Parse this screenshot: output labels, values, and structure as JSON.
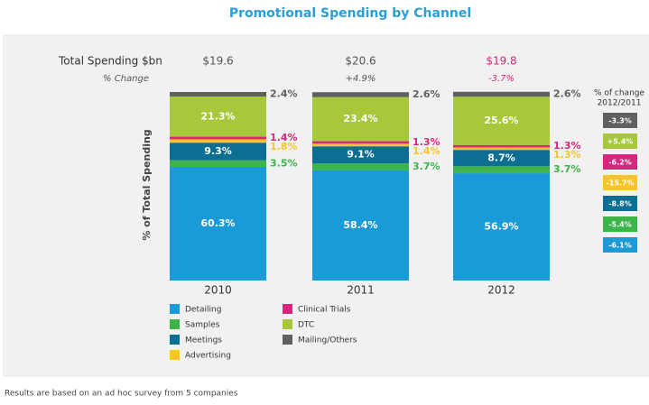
{
  "chart_data": {
    "type": "stacked_bar",
    "title": "Promotional Spending by Channel",
    "y_label": "% of Total Spending",
    "categories": [
      "2010",
      "2011",
      "2012"
    ],
    "ylim": [
      0,
      100
    ],
    "totals": {
      "label": "Total Spending $bn",
      "values": [
        19.6,
        20.6,
        19.8
      ],
      "value_labels": [
        "$19.6",
        "$20.6",
        "$19.8"
      ],
      "colors": [
        "#555555",
        "#555555",
        "#d7267d"
      ]
    },
    "change": {
      "label": "% Change",
      "values": [
        null,
        4.9,
        -3.7
      ],
      "value_labels": [
        null,
        "+4.9%",
        "-3.7%"
      ],
      "colors": [
        "#555555",
        "#555555",
        "#d7267d"
      ]
    },
    "change_2012_2011_title": [
      "% of change",
      "2012/2011"
    ],
    "series": [
      {
        "name": "Detailing",
        "color": "#1a9ad6",
        "values": [
          60.3,
          58.4,
          56.9
        ],
        "value_labels": [
          "60.3%",
          "58.4%",
          "56.9%"
        ],
        "change": -6.1,
        "change_label": "-6.1%"
      },
      {
        "name": "Samples",
        "color": "#3cb449",
        "values": [
          3.5,
          3.7,
          3.7
        ],
        "value_labels": [
          "3.5%",
          "3.7%",
          "3.7%"
        ],
        "change": -5.4,
        "change_label": "-5.4%"
      },
      {
        "name": "Meetings",
        "color": "#0d6e94",
        "values": [
          9.3,
          9.1,
          8.7
        ],
        "value_labels": [
          "9.3%",
          "9.1%",
          "8.7%"
        ],
        "change": -8.8,
        "change_label": "-8.8%"
      },
      {
        "name": "Advertising",
        "color": "#f7c52a",
        "values": [
          1.8,
          1.4,
          1.3
        ],
        "value_labels": [
          "1.8%",
          "1.4%",
          "1.3%"
        ],
        "change": -15.7,
        "change_label": "-15.7%"
      },
      {
        "name": "Clinical Trials",
        "color": "#d7267d",
        "values": [
          1.4,
          1.3,
          1.3
        ],
        "value_labels": [
          "1.4%",
          "1.3%",
          "1.3%"
        ],
        "change": -6.2,
        "change_label": "-6.2%"
      },
      {
        "name": "DTC",
        "color": "#a6c83a",
        "values": [
          21.3,
          23.4,
          25.6
        ],
        "value_labels": [
          "21.3%",
          "23.4%",
          "25.6%"
        ],
        "change": 5.4,
        "change_label": "+5.4%"
      },
      {
        "name": "Mailing/Others",
        "color": "#5f6062",
        "values": [
          2.4,
          2.6,
          2.6
        ],
        "value_labels": [
          "2.4%",
          "2.6%",
          "2.6%"
        ],
        "change": -3.3,
        "change_label": "-3.3%"
      }
    ],
    "footnote": "Results are based on an ad hoc survey from 5 companies"
  }
}
